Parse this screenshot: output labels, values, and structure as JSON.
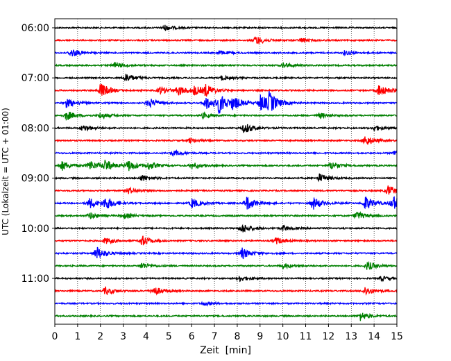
{
  "chart_data": {
    "type": "line",
    "title": "",
    "xlabel": "Zeit  [min]",
    "ylabel": "UTC (Lokalzeit = UTC + 01:00)",
    "xlim": [
      0,
      15
    ],
    "x_ticks": [
      "0",
      "1",
      "2",
      "3",
      "4",
      "5",
      "6",
      "7",
      "8",
      "9",
      "10",
      "11",
      "12",
      "13",
      "14",
      "15"
    ],
    "y_ticks": [
      "06:00",
      "07:00",
      "08:00",
      "09:00",
      "10:00",
      "11:00"
    ],
    "grid": "vertical dotted",
    "trace_colors": [
      "#000000",
      "#ff0000",
      "#0000ff",
      "#008000"
    ],
    "traces": [
      {
        "start": "06:00",
        "events": [
          [
            4.8,
            0.5
          ]
        ]
      },
      {
        "start": "06:15",
        "events": [
          [
            8.8,
            0.9
          ],
          [
            10.8,
            0.4
          ]
        ]
      },
      {
        "start": "06:30",
        "events": [
          [
            0.7,
            0.8
          ],
          [
            7.2,
            0.4
          ],
          [
            12.7,
            0.4
          ]
        ]
      },
      {
        "start": "06:45",
        "events": [
          [
            2.6,
            0.6
          ],
          [
            10.0,
            0.5
          ]
        ]
      },
      {
        "start": "07:00",
        "events": [
          [
            3.1,
            0.8
          ],
          [
            7.3,
            0.4
          ]
        ]
      },
      {
        "start": "07:15",
        "events": [
          [
            2.0,
            1.4
          ],
          [
            4.6,
            0.7
          ],
          [
            5.4,
            0.9
          ],
          [
            6.1,
            0.8
          ],
          [
            6.6,
            1.0
          ],
          [
            14.2,
            1.1
          ]
        ]
      },
      {
        "start": "07:30",
        "events": [
          [
            0.5,
            0.8
          ],
          [
            4.1,
            0.9
          ],
          [
            6.6,
            1.3
          ],
          [
            7.2,
            1.8
          ],
          [
            7.8,
            1.0
          ],
          [
            9.0,
            1.5
          ],
          [
            9.4,
            1.6
          ]
        ]
      },
      {
        "start": "07:45",
        "events": [
          [
            0.5,
            0.9
          ],
          [
            2.0,
            0.6
          ],
          [
            6.5,
            0.5
          ],
          [
            11.6,
            0.5
          ]
        ]
      },
      {
        "start": "08:00",
        "events": [
          [
            1.2,
            0.6
          ],
          [
            8.3,
            1.0
          ],
          [
            14.0,
            0.5
          ]
        ]
      },
      {
        "start": "08:15",
        "events": [
          [
            13.6,
            1.0
          ],
          [
            5.9,
            0.4
          ]
        ]
      },
      {
        "start": "08:30",
        "events": [
          [
            5.2,
            0.5
          ],
          [
            14.9,
            0.6
          ]
        ]
      },
      {
        "start": "08:45",
        "events": [
          [
            0.3,
            0.9
          ],
          [
            1.5,
            1.0
          ],
          [
            2.2,
            1.0
          ],
          [
            3.2,
            1.0
          ],
          [
            4.1,
            0.7
          ],
          [
            6.0,
            0.6
          ],
          [
            12.1,
            0.8
          ]
        ]
      },
      {
        "start": "09:00",
        "events": [
          [
            3.8,
            0.6
          ],
          [
            11.6,
            0.8
          ]
        ]
      },
      {
        "start": "09:15",
        "events": [
          [
            3.2,
            0.6
          ],
          [
            14.6,
            1.0
          ]
        ]
      },
      {
        "start": "09:30",
        "events": [
          [
            1.5,
            1.0
          ],
          [
            2.2,
            1.2
          ],
          [
            6.0,
            0.9
          ],
          [
            8.4,
            1.3
          ],
          [
            11.3,
            1.2
          ],
          [
            13.6,
            1.3
          ],
          [
            14.8,
            1.4
          ]
        ]
      },
      {
        "start": "09:45",
        "events": [
          [
            1.5,
            0.6
          ],
          [
            3.0,
            0.5
          ],
          [
            13.2,
            0.8
          ]
        ]
      },
      {
        "start": "10:00",
        "events": [
          [
            8.2,
            0.9
          ],
          [
            10.0,
            0.5
          ]
        ]
      },
      {
        "start": "10:15",
        "events": [
          [
            2.2,
            0.6
          ],
          [
            3.8,
            1.0
          ],
          [
            9.7,
            0.6
          ]
        ]
      },
      {
        "start": "10:30",
        "events": [
          [
            1.8,
            1.3
          ],
          [
            8.2,
            1.0
          ]
        ]
      },
      {
        "start": "10:45",
        "events": [
          [
            3.8,
            0.6
          ],
          [
            10.0,
            0.5
          ],
          [
            13.7,
            0.8
          ]
        ]
      },
      {
        "start": "11:00",
        "events": [
          [
            8.1,
            0.5
          ],
          [
            14.3,
            0.4
          ]
        ]
      },
      {
        "start": "11:15",
        "events": [
          [
            2.2,
            0.7
          ],
          [
            4.3,
            0.9
          ],
          [
            13.6,
            0.8
          ]
        ]
      },
      {
        "start": "11:30",
        "events": [
          [
            6.5,
            0.3
          ]
        ]
      },
      {
        "start": "11:45",
        "events": [
          [
            13.4,
            0.8
          ]
        ]
      }
    ]
  }
}
